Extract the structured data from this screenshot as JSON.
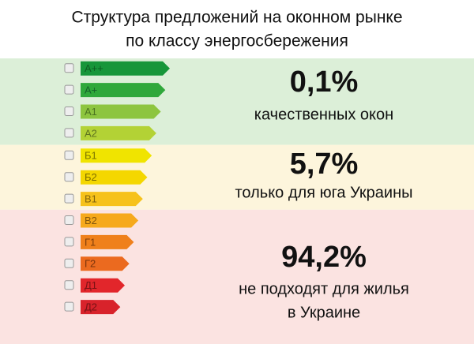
{
  "title": [
    "Структура предложений на оконном рынке",
    "по классу энергосбережения"
  ],
  "groups": [
    {
      "classes": [
        "A++",
        "A+",
        "A1",
        "A2"
      ],
      "value": "0,1%",
      "caption": [
        "качественных окон"
      ]
    },
    {
      "classes": [
        "Б1",
        "Б2",
        "В1"
      ],
      "value": "5,7%",
      "caption": [
        "только для юга Украины"
      ]
    },
    {
      "classes": [
        "В2",
        "Г1",
        "Г2",
        "Д1",
        "Д2"
      ],
      "value": "94,2%",
      "caption": [
        "не подходят для жилья",
        "в Украине"
      ]
    }
  ]
}
